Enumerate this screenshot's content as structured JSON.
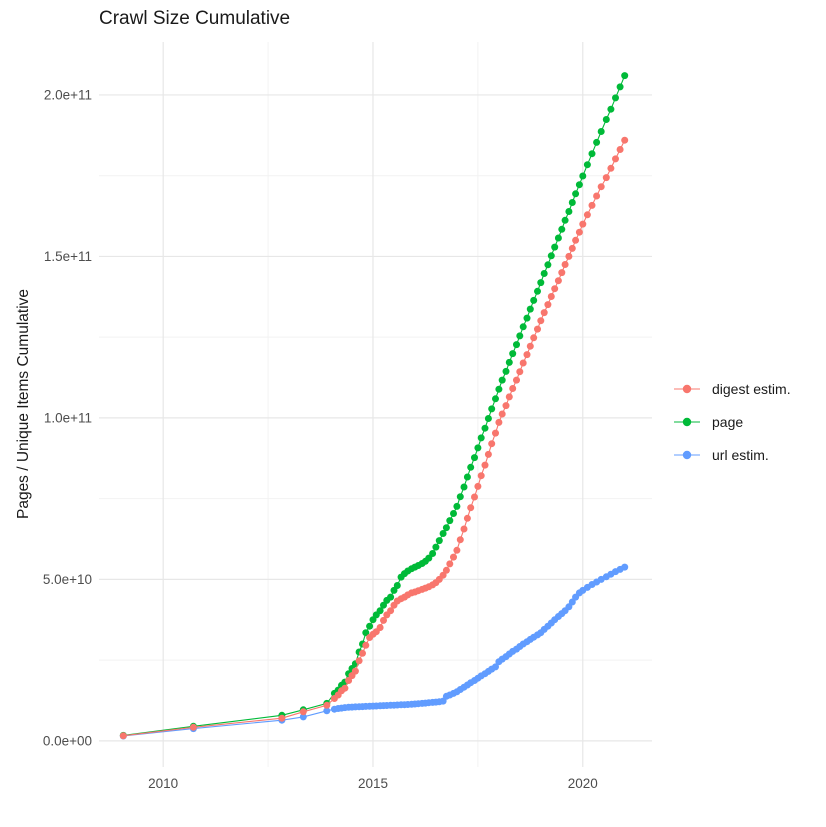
{
  "chart_data": {
    "type": "scatter",
    "title": "Crawl Size Cumulative",
    "xlabel": "",
    "ylabel": "Pages / Unique Items Cumulative",
    "value_unit_note": "y values stored in billions of items (1e9); axis shows scientific notation",
    "x_years": [
      2009.05,
      2010.72,
      2012.83,
      2013.34,
      2013.9,
      2014.08,
      2014.17,
      2014.25,
      2014.33,
      2014.42,
      2014.5,
      2014.58,
      2014.67,
      2014.75,
      2014.83,
      2014.92,
      2015.0,
      2015.08,
      2015.17,
      2015.25,
      2015.33,
      2015.42,
      2015.5,
      2015.58,
      2015.67,
      2015.75,
      2015.83,
      2015.92,
      2016.0,
      2016.08,
      2016.17,
      2016.25,
      2016.33,
      2016.42,
      2016.5,
      2016.58,
      2016.67,
      2016.75,
      2016.83,
      2016.92,
      2017.0,
      2017.08,
      2017.17,
      2017.25,
      2017.33,
      2017.42,
      2017.5,
      2017.58,
      2017.67,
      2017.75,
      2017.83,
      2017.92,
      2018.0,
      2018.08,
      2018.17,
      2018.25,
      2018.33,
      2018.42,
      2018.5,
      2018.58,
      2018.67,
      2018.75,
      2018.83,
      2018.92,
      2019.0,
      2019.08,
      2019.17,
      2019.25,
      2019.33,
      2019.42,
      2019.5,
      2019.58,
      2019.67,
      2019.75,
      2019.83,
      2019.92,
      2020.0,
      2020.11,
      2020.22,
      2020.33,
      2020.44,
      2020.56,
      2020.67,
      2020.78,
      2020.89,
      2021.0
    ],
    "series": [
      {
        "name": "digest estim.",
        "color": "#F8766D",
        "values_e9": [
          1.55,
          4.2,
          7.0,
          9.0,
          11.0,
          13.1,
          14.2,
          15.5,
          16.3,
          18.7,
          20.2,
          21.6,
          24.8,
          27.1,
          29.6,
          32.0,
          33.0,
          33.8,
          35.1,
          37.3,
          39.0,
          40.3,
          42.0,
          43.3,
          44.0,
          44.5,
          45.2,
          45.8,
          46.1,
          46.5,
          46.9,
          47.3,
          47.7,
          48.3,
          49.0,
          50.0,
          51.3,
          52.8,
          54.8,
          56.9,
          59.0,
          62.3,
          65.6,
          68.9,
          72.2,
          75.5,
          78.8,
          82.1,
          85.4,
          88.7,
          92.0,
          95.3,
          98.6,
          101.2,
          103.8,
          106.5,
          109.1,
          111.7,
          114.3,
          117.0,
          119.6,
          122.2,
          124.8,
          127.5,
          130.1,
          132.6,
          135.1,
          137.6,
          140.0,
          142.5,
          145.0,
          147.5,
          150.0,
          152.5,
          155.0,
          157.5,
          160.0,
          162.9,
          165.8,
          168.7,
          171.6,
          174.4,
          177.3,
          180.2,
          183.1,
          186.0
        ]
      },
      {
        "name": "page",
        "color": "#00BA38",
        "values_e9": [
          1.7,
          4.5,
          7.9,
          9.6,
          11.6,
          14.7,
          15.7,
          17.2,
          18.2,
          20.8,
          22.4,
          23.9,
          27.5,
          30.0,
          33.5,
          35.5,
          37.5,
          39.0,
          40.3,
          42.0,
          43.5,
          44.5,
          46.6,
          48.1,
          50.7,
          51.8,
          52.6,
          53.3,
          53.8,
          54.3,
          54.9,
          55.6,
          56.6,
          58.0,
          60.0,
          62.0,
          64.2,
          66.0,
          68.2,
          70.4,
          72.6,
          75.6,
          78.6,
          81.7,
          84.7,
          87.7,
          90.7,
          93.8,
          96.8,
          99.8,
          102.8,
          105.9,
          108.9,
          111.7,
          114.4,
          117.2,
          119.9,
          122.7,
          125.4,
          128.2,
          130.9,
          133.7,
          136.4,
          139.2,
          141.9,
          144.7,
          147.4,
          150.2,
          152.9,
          155.7,
          158.4,
          161.2,
          163.9,
          166.7,
          169.4,
          172.2,
          174.9,
          178.4,
          181.8,
          185.3,
          188.7,
          192.4,
          195.6,
          199.1,
          202.5,
          206.0
        ]
      },
      {
        "name": "url estim.",
        "color": "#619CFF",
        "values_e9": [
          1.5,
          3.8,
          6.4,
          7.4,
          9.3,
          9.8,
          10.0,
          10.15,
          10.3,
          10.4,
          10.45,
          10.5,
          10.55,
          10.6,
          10.65,
          10.7,
          10.75,
          10.8,
          10.85,
          10.9,
          10.95,
          11.0,
          11.05,
          11.1,
          11.15,
          11.2,
          11.25,
          11.3,
          11.4,
          11.5,
          11.6,
          11.7,
          11.8,
          11.9,
          12.0,
          12.1,
          12.3,
          13.8,
          14.2,
          14.7,
          15.2,
          15.9,
          16.6,
          17.3,
          18.0,
          18.7,
          19.4,
          20.1,
          20.8,
          21.5,
          22.2,
          22.9,
          24.5,
          25.3,
          26.1,
          26.9,
          27.7,
          28.4,
          29.2,
          30.0,
          30.7,
          31.4,
          32.1,
          32.8,
          33.5,
          34.5,
          35.5,
          36.5,
          37.5,
          38.5,
          39.4,
          40.3,
          41.5,
          43.0,
          44.5,
          45.8,
          46.6,
          47.5,
          48.4,
          49.2,
          50.0,
          50.8,
          51.6,
          52.4,
          53.1,
          53.8
        ]
      }
    ],
    "x_axis": {
      "tick_labels": [
        "2010",
        "2015",
        "2020"
      ],
      "tick_years": [
        2010,
        2015,
        2020
      ],
      "minor_years": [
        2012.5,
        2017.5
      ]
    },
    "y_axis": {
      "tick_labels": [
        "0.0e+00",
        "5.0e+10",
        "1.0e+11",
        "1.5e+11",
        "2.0e+11"
      ],
      "tick_values_e9": [
        0,
        50,
        100,
        150,
        200
      ],
      "minor_values_e9": [
        25,
        75,
        125,
        175
      ]
    },
    "xlim_years": [
      2008.47,
      2021.65
    ],
    "ylim_e9": [
      -8.1,
      216.4
    ],
    "grid": "major+minor, no axis lines, no tick marks (minimal theme)",
    "legend_position": "right-middle",
    "colors": {
      "grid_major": "#E7E7E7",
      "grid_minor": "#F2F2F2",
      "axis_text": "#4D4D4D",
      "title_text": "#1A1A1A",
      "background": "#FFFFFF"
    }
  }
}
